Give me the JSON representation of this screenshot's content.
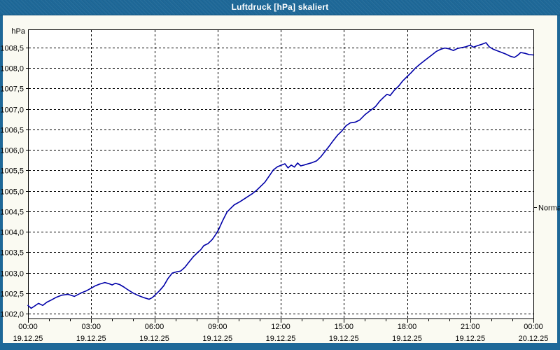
{
  "window": {
    "title": "Luftdruck [hPa] skaliert"
  },
  "colors": {
    "titlebar": "#1E6898",
    "frame": "#1E6898",
    "content_bg": "#FAFAF2",
    "plot_bg": "#FFFFFF",
    "grid": "#000000",
    "axis_text": "#000000",
    "series_line": "#0000A8"
  },
  "chart_data": {
    "type": "line",
    "title": "Luftdruck [hPa] skaliert",
    "y_unit_label": "hPa",
    "right_marker": {
      "label": "Normal",
      "value": 1004.6
    },
    "ylim": [
      1001.88,
      1008.945
    ],
    "grid": true,
    "yticks": [
      {
        "v": 1002.0,
        "label": "1002,0"
      },
      {
        "v": 1002.5,
        "label": "1002,5"
      },
      {
        "v": 1003.0,
        "label": "1003,0"
      },
      {
        "v": 1003.5,
        "label": "1003,5"
      },
      {
        "v": 1004.0,
        "label": "1004,0"
      },
      {
        "v": 1004.5,
        "label": "1004,5"
      },
      {
        "v": 1005.0,
        "label": "1005,0"
      },
      {
        "v": 1005.5,
        "label": "1005,5"
      },
      {
        "v": 1006.0,
        "label": "1006,0"
      },
      {
        "v": 1006.5,
        "label": "1006,5"
      },
      {
        "v": 1007.0,
        "label": "1007,0"
      },
      {
        "v": 1007.5,
        "label": "1007,5"
      },
      {
        "v": 1008.0,
        "label": "1008,0"
      },
      {
        "v": 1008.5,
        "label": "1008,5"
      }
    ],
    "xlim_hours": [
      0,
      24
    ],
    "xticks": [
      {
        "h": 0,
        "time": "00:00",
        "date": "19.12.25"
      },
      {
        "h": 3,
        "time": "03:00",
        "date": "19.12.25"
      },
      {
        "h": 6,
        "time": "06:00",
        "date": "19.12.25"
      },
      {
        "h": 9,
        "time": "09:00",
        "date": "19.12.25"
      },
      {
        "h": 12,
        "time": "12:00",
        "date": "19.12.25"
      },
      {
        "h": 15,
        "time": "15:00",
        "date": "19.12.25"
      },
      {
        "h": 18,
        "time": "18:00",
        "date": "19.12.25"
      },
      {
        "h": 21,
        "time": "21:00",
        "date": "19.12.25"
      },
      {
        "h": 24,
        "time": "00:00",
        "date": "20.12.25"
      }
    ],
    "minor_xtick_step_hours": 1,
    "series": [
      {
        "name": "Luftdruck",
        "color": "#0000A8",
        "points": [
          [
            0,
            1002.2
          ],
          [
            0.15,
            1002.13
          ],
          [
            0.3,
            1002.18
          ],
          [
            0.5,
            1002.25
          ],
          [
            0.7,
            1002.2
          ],
          [
            0.9,
            1002.28
          ],
          [
            1.1,
            1002.33
          ],
          [
            1.35,
            1002.4
          ],
          [
            1.6,
            1002.45
          ],
          [
            1.9,
            1002.47
          ],
          [
            2.2,
            1002.42
          ],
          [
            2.5,
            1002.5
          ],
          [
            2.75,
            1002.55
          ],
          [
            3,
            1002.62
          ],
          [
            3.2,
            1002.68
          ],
          [
            3.4,
            1002.72
          ],
          [
            3.65,
            1002.76
          ],
          [
            3.85,
            1002.73
          ],
          [
            4,
            1002.7
          ],
          [
            4.15,
            1002.74
          ],
          [
            4.35,
            1002.71
          ],
          [
            4.55,
            1002.65
          ],
          [
            4.75,
            1002.58
          ],
          [
            5,
            1002.5
          ],
          [
            5.25,
            1002.44
          ],
          [
            5.5,
            1002.39
          ],
          [
            5.75,
            1002.35
          ],
          [
            5.9,
            1002.39
          ],
          [
            6.05,
            1002.46
          ],
          [
            6.25,
            1002.56
          ],
          [
            6.45,
            1002.68
          ],
          [
            6.65,
            1002.86
          ],
          [
            6.85,
            1002.99
          ],
          [
            7.05,
            1003.02
          ],
          [
            7.25,
            1003.04
          ],
          [
            7.45,
            1003.13
          ],
          [
            7.65,
            1003.26
          ],
          [
            7.85,
            1003.39
          ],
          [
            8.05,
            1003.49
          ],
          [
            8.2,
            1003.56
          ],
          [
            8.35,
            1003.66
          ],
          [
            8.55,
            1003.71
          ],
          [
            8.75,
            1003.81
          ],
          [
            8.9,
            1003.92
          ],
          [
            9.05,
            1004.05
          ],
          [
            9.25,
            1004.28
          ],
          [
            9.45,
            1004.48
          ],
          [
            9.6,
            1004.56
          ],
          [
            9.8,
            1004.66
          ],
          [
            10.05,
            1004.73
          ],
          [
            10.35,
            1004.83
          ],
          [
            10.65,
            1004.93
          ],
          [
            10.85,
            1005.01
          ],
          [
            11.05,
            1005.11
          ],
          [
            11.25,
            1005.21
          ],
          [
            11.45,
            1005.36
          ],
          [
            11.65,
            1005.51
          ],
          [
            11.85,
            1005.59
          ],
          [
            12.05,
            1005.63
          ],
          [
            12.2,
            1005.66
          ],
          [
            12.35,
            1005.56
          ],
          [
            12.5,
            1005.63
          ],
          [
            12.65,
            1005.58
          ],
          [
            12.8,
            1005.68
          ],
          [
            12.95,
            1005.61
          ],
          [
            13.1,
            1005.63
          ],
          [
            13.3,
            1005.66
          ],
          [
            13.5,
            1005.69
          ],
          [
            13.7,
            1005.73
          ],
          [
            13.9,
            1005.83
          ],
          [
            14.1,
            1005.96
          ],
          [
            14.3,
            1006.09
          ],
          [
            14.5,
            1006.23
          ],
          [
            14.7,
            1006.36
          ],
          [
            14.9,
            1006.46
          ],
          [
            15.1,
            1006.59
          ],
          [
            15.3,
            1006.66
          ],
          [
            15.55,
            1006.68
          ],
          [
            15.75,
            1006.73
          ],
          [
            16,
            1006.86
          ],
          [
            16.25,
            1006.96
          ],
          [
            16.5,
            1007.06
          ],
          [
            16.7,
            1007.19
          ],
          [
            16.9,
            1007.29
          ],
          [
            17.05,
            1007.36
          ],
          [
            17.2,
            1007.33
          ],
          [
            17.4,
            1007.46
          ],
          [
            17.6,
            1007.56
          ],
          [
            17.8,
            1007.69
          ],
          [
            18,
            1007.79
          ],
          [
            18.2,
            1007.89
          ],
          [
            18.4,
            1008.0
          ],
          [
            18.6,
            1008.09
          ],
          [
            18.8,
            1008.17
          ],
          [
            19,
            1008.25
          ],
          [
            19.2,
            1008.33
          ],
          [
            19.4,
            1008.41
          ],
          [
            19.6,
            1008.46
          ],
          [
            19.8,
            1008.49
          ],
          [
            20,
            1008.47
          ],
          [
            20.2,
            1008.43
          ],
          [
            20.4,
            1008.48
          ],
          [
            20.6,
            1008.5
          ],
          [
            20.8,
            1008.52
          ],
          [
            21,
            1008.56
          ],
          [
            21.15,
            1008.51
          ],
          [
            21.35,
            1008.55
          ],
          [
            21.55,
            1008.58
          ],
          [
            21.75,
            1008.62
          ],
          [
            21.9,
            1008.52
          ],
          [
            22.1,
            1008.46
          ],
          [
            22.3,
            1008.42
          ],
          [
            22.5,
            1008.38
          ],
          [
            22.7,
            1008.34
          ],
          [
            22.9,
            1008.29
          ],
          [
            23.1,
            1008.26
          ],
          [
            23.25,
            1008.31
          ],
          [
            23.4,
            1008.38
          ],
          [
            23.6,
            1008.36
          ],
          [
            23.8,
            1008.33
          ],
          [
            24,
            1008.32
          ]
        ]
      }
    ]
  }
}
